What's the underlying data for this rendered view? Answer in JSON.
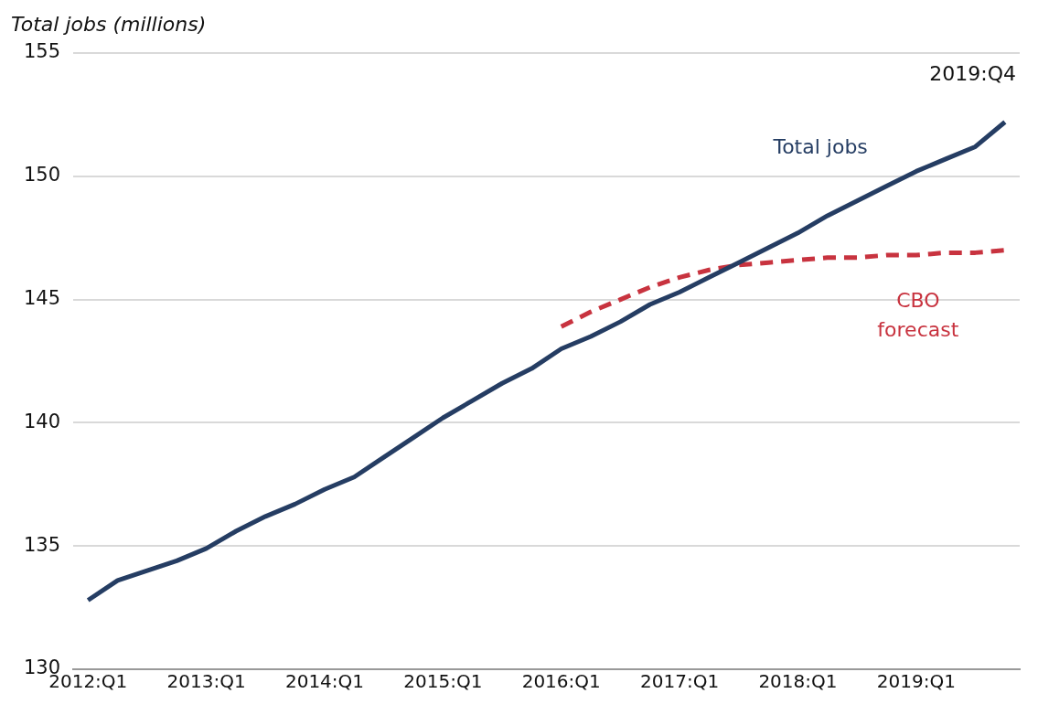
{
  "chart_data": {
    "type": "line",
    "ylabel": "Total jobs (millions)",
    "categories": [
      "2012:Q1",
      null,
      null,
      null,
      "2013:Q1",
      null,
      null,
      null,
      "2014:Q1",
      null,
      null,
      null,
      "2015:Q1",
      null,
      null,
      null,
      "2016:Q1",
      null,
      null,
      null,
      "2017:Q1",
      null,
      null,
      null,
      "2018:Q1",
      null,
      null,
      null,
      "2019:Q1",
      null,
      null,
      null
    ],
    "series": [
      {
        "name": "Total jobs",
        "color": "#253d63",
        "line_style": "solid",
        "values": [
          132.8,
          133.6,
          134.0,
          134.4,
          134.9,
          135.6,
          136.2,
          136.7,
          137.3,
          137.8,
          138.6,
          139.4,
          140.2,
          140.9,
          141.6,
          142.2,
          143.0,
          143.5,
          144.1,
          144.8,
          145.3,
          145.9,
          146.5,
          147.1,
          147.7,
          148.4,
          149.0,
          149.6,
          150.2,
          150.7,
          151.2,
          152.2
        ]
      },
      {
        "name": "CBO forecast",
        "color": "#c8333f",
        "line_style": "dashed",
        "values": [
          null,
          null,
          null,
          null,
          null,
          null,
          null,
          null,
          null,
          null,
          null,
          null,
          null,
          null,
          null,
          null,
          143.9,
          144.5,
          145.0,
          145.5,
          145.9,
          146.2,
          146.4,
          146.5,
          146.6,
          146.7,
          146.7,
          146.8,
          146.8,
          146.9,
          146.9,
          147.0
        ]
      }
    ],
    "ylim": [
      130,
      155
    ],
    "yticks": [
      130,
      135,
      140,
      145,
      150,
      155
    ],
    "grid": "y",
    "legend": false,
    "marker": "none",
    "annotations": [
      "2019:Q4"
    ]
  }
}
